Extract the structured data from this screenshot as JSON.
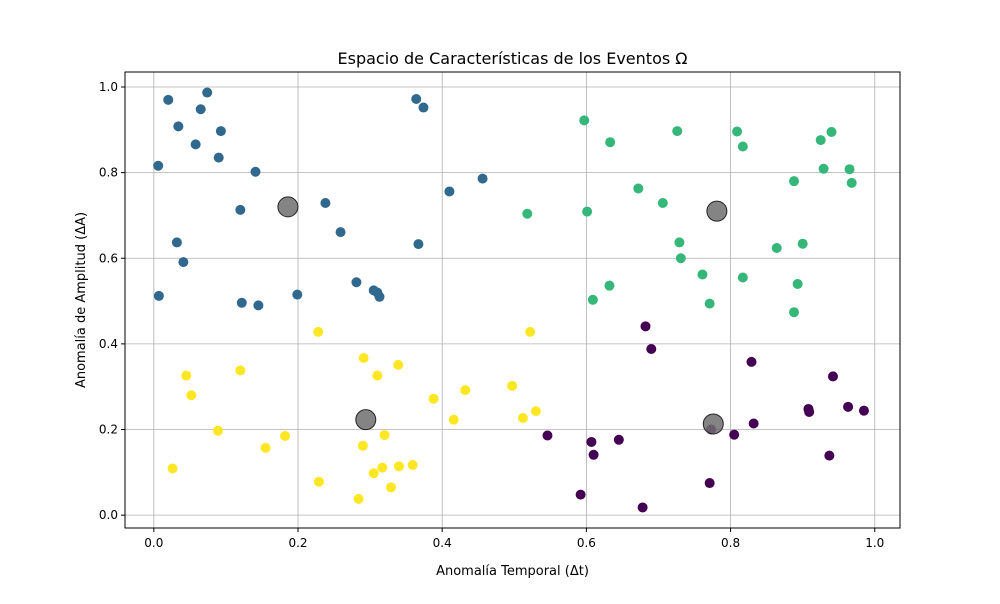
{
  "chart_data": {
    "type": "scatter",
    "title": "Espacio de Características de los Eventos Ω",
    "xlabel": "Anomalía Temporal (Δt)",
    "ylabel": "Anomalía de Amplitud (ΔA)",
    "xlim": [
      -0.04,
      1.035
    ],
    "ylim": [
      -0.03,
      1.035
    ],
    "xticks": [
      0.0,
      0.2,
      0.4,
      0.6,
      0.8,
      1.0
    ],
    "yticks": [
      0.0,
      0.2,
      0.4,
      0.6,
      0.8,
      1.0
    ],
    "xtick_labels": [
      "0.0",
      "0.2",
      "0.4",
      "0.6",
      "0.8",
      "1.0"
    ],
    "ytick_labels": [
      "0.0",
      "0.2",
      "0.4",
      "0.6",
      "0.8",
      "1.0"
    ],
    "grid": true,
    "colormap": "viridis",
    "series": [
      {
        "color": "#31688e",
        "points": [
          [
            0.02,
            0.97
          ],
          [
            0.074,
            0.987
          ],
          [
            0.065,
            0.948
          ],
          [
            0.034,
            0.908
          ],
          [
            0.093,
            0.897
          ],
          [
            0.058,
            0.866
          ],
          [
            0.09,
            0.835
          ],
          [
            0.006,
            0.816
          ],
          [
            0.141,
            0.802
          ],
          [
            0.12,
            0.713
          ],
          [
            0.032,
            0.637
          ],
          [
            0.041,
            0.591
          ],
          [
            0.007,
            0.512
          ],
          [
            0.122,
            0.496
          ],
          [
            0.145,
            0.49
          ],
          [
            0.199,
            0.515
          ],
          [
            0.238,
            0.729
          ],
          [
            0.259,
            0.661
          ],
          [
            0.281,
            0.544
          ],
          [
            0.305,
            0.525
          ],
          [
            0.31,
            0.52
          ],
          [
            0.313,
            0.51
          ],
          [
            0.364,
            0.972
          ],
          [
            0.374,
            0.952
          ],
          [
            0.367,
            0.633
          ],
          [
            0.41,
            0.756
          ],
          [
            0.456,
            0.786
          ]
        ]
      },
      {
        "color": "#35b779",
        "points": [
          [
            0.597,
            0.922
          ],
          [
            0.633,
            0.871
          ],
          [
            0.726,
            0.897
          ],
          [
            0.809,
            0.896
          ],
          [
            0.817,
            0.861
          ],
          [
            0.672,
            0.763
          ],
          [
            0.706,
            0.729
          ],
          [
            0.518,
            0.704
          ],
          [
            0.601,
            0.709
          ],
          [
            0.729,
            0.637
          ],
          [
            0.731,
            0.6
          ],
          [
            0.761,
            0.562
          ],
          [
            0.609,
            0.503
          ],
          [
            0.632,
            0.536
          ],
          [
            0.771,
            0.494
          ],
          [
            0.817,
            0.555
          ],
          [
            0.864,
            0.624
          ],
          [
            0.9,
            0.634
          ],
          [
            0.888,
            0.78
          ],
          [
            0.929,
            0.809
          ],
          [
            0.925,
            0.876
          ],
          [
            0.94,
            0.895
          ],
          [
            0.965,
            0.808
          ],
          [
            0.968,
            0.776
          ],
          [
            0.893,
            0.54
          ],
          [
            0.888,
            0.474
          ]
        ]
      },
      {
        "color": "#fde725",
        "points": [
          [
            0.026,
            0.109
          ],
          [
            0.045,
            0.326
          ],
          [
            0.052,
            0.28
          ],
          [
            0.089,
            0.197
          ],
          [
            0.12,
            0.338
          ],
          [
            0.155,
            0.157
          ],
          [
            0.182,
            0.185
          ],
          [
            0.228,
            0.428
          ],
          [
            0.229,
            0.078
          ],
          [
            0.284,
            0.038
          ],
          [
            0.29,
            0.162
          ],
          [
            0.291,
            0.367
          ],
          [
            0.305,
            0.098
          ],
          [
            0.31,
            0.326
          ],
          [
            0.317,
            0.111
          ],
          [
            0.32,
            0.187
          ],
          [
            0.329,
            0.065
          ],
          [
            0.339,
            0.351
          ],
          [
            0.34,
            0.114
          ],
          [
            0.359,
            0.117
          ],
          [
            0.388,
            0.272
          ],
          [
            0.416,
            0.223
          ],
          [
            0.432,
            0.292
          ],
          [
            0.497,
            0.302
          ],
          [
            0.512,
            0.227
          ],
          [
            0.522,
            0.428
          ],
          [
            0.53,
            0.243
          ]
        ]
      },
      {
        "color": "#440154",
        "points": [
          [
            0.546,
            0.186
          ],
          [
            0.592,
            0.048
          ],
          [
            0.607,
            0.171
          ],
          [
            0.61,
            0.141
          ],
          [
            0.645,
            0.176
          ],
          [
            0.678,
            0.018
          ],
          [
            0.682,
            0.441
          ],
          [
            0.69,
            0.388
          ],
          [
            0.771,
            0.075
          ],
          [
            0.773,
            0.2
          ],
          [
            0.805,
            0.188
          ],
          [
            0.829,
            0.358
          ],
          [
            0.832,
            0.214
          ],
          [
            0.908,
            0.248
          ],
          [
            0.909,
            0.241
          ],
          [
            0.937,
            0.139
          ],
          [
            0.942,
            0.324
          ],
          [
            0.963,
            0.253
          ],
          [
            0.985,
            0.244
          ]
        ]
      }
    ],
    "centroids": {
      "color": "#6e6e6e",
      "points": [
        [
          0.186,
          0.72
        ],
        [
          0.781,
          0.71
        ],
        [
          0.294,
          0.223
        ],
        [
          0.776,
          0.213
        ]
      ]
    }
  }
}
